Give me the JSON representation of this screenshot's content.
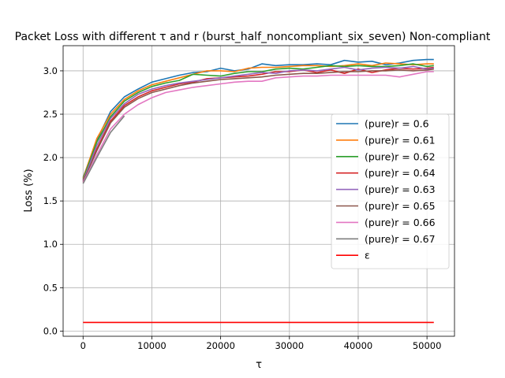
{
  "chart_data": {
    "type": "line",
    "title": "Packet Loss with different τ and r (burst_half_noncompliant_six_seven) Non-compliant",
    "xlabel": "τ",
    "ylabel": "Loss (%)",
    "xlim": [
      -2900,
      54000
    ],
    "ylim": [
      -0.06,
      3.29
    ],
    "xticks": [
      0,
      10000,
      20000,
      30000,
      40000,
      50000
    ],
    "xtick_labels": [
      "0",
      "10000",
      "20000",
      "30000",
      "40000",
      "50000"
    ],
    "yticks": [
      0.0,
      0.5,
      1.0,
      1.5,
      2.0,
      2.5,
      3.0
    ],
    "ytick_labels": [
      "0.0",
      "0.5",
      "1.0",
      "1.5",
      "2.0",
      "2.5",
      "3.0"
    ],
    "grid": true,
    "legend_position": "center-right",
    "series": [
      {
        "name": "(pure)r = 0.6",
        "color": "#1f77b4",
        "x": [
          0,
          2000,
          4000,
          6000,
          8000,
          10000,
          12000,
          14000,
          16000,
          18000,
          20000,
          22000,
          24000,
          26000,
          28000,
          30000,
          32000,
          34000,
          36000,
          38000,
          40000,
          42000,
          44000,
          46000,
          48000,
          50000,
          51000
        ],
        "y": [
          1.77,
          2.2,
          2.53,
          2.7,
          2.79,
          2.87,
          2.91,
          2.95,
          2.98,
          2.99,
          3.03,
          3.0,
          3.02,
          3.08,
          3.06,
          3.07,
          3.07,
          3.08,
          3.07,
          3.12,
          3.1,
          3.11,
          3.07,
          3.09,
          3.12,
          3.13,
          3.13
        ]
      },
      {
        "name": "(pure)r = 0.61",
        "color": "#ff7f0e",
        "x": [
          0,
          2000,
          4000,
          6000,
          8000,
          10000,
          12000,
          14000,
          16000,
          18000,
          20000,
          22000,
          24000,
          26000,
          28000,
          30000,
          32000,
          34000,
          36000,
          38000,
          40000,
          42000,
          44000,
          46000,
          48000,
          50000,
          51000
        ],
        "y": [
          1.76,
          2.22,
          2.5,
          2.67,
          2.77,
          2.84,
          2.88,
          2.92,
          2.96,
          3.0,
          3.0,
          2.99,
          3.03,
          3.04,
          3.04,
          3.05,
          3.06,
          3.06,
          3.05,
          3.06,
          3.08,
          3.06,
          3.09,
          3.08,
          3.07,
          3.08,
          3.08
        ]
      },
      {
        "name": "(pure)r = 0.62",
        "color": "#2ca02c",
        "x": [
          0,
          2000,
          4000,
          6000,
          8000,
          10000,
          12000,
          14000,
          16000,
          18000,
          20000,
          22000,
          24000,
          26000,
          28000,
          30000,
          32000,
          34000,
          36000,
          38000,
          40000,
          42000,
          44000,
          46000,
          48000,
          50000,
          51000
        ],
        "y": [
          1.75,
          2.18,
          2.47,
          2.65,
          2.75,
          2.82,
          2.86,
          2.89,
          2.96,
          2.95,
          2.94,
          2.97,
          2.99,
          2.99,
          3.02,
          3.03,
          3.02,
          3.04,
          3.06,
          3.05,
          3.06,
          3.05,
          3.05,
          3.06,
          3.08,
          3.05,
          3.06
        ]
      },
      {
        "name": "(pure)r = 0.64",
        "color": "#d62728",
        "x": [
          0,
          2000,
          4000,
          6000,
          8000,
          10000,
          12000,
          14000,
          16000,
          18000,
          20000,
          22000,
          24000,
          26000,
          28000,
          30000,
          32000,
          34000,
          36000,
          38000,
          40000,
          42000,
          44000,
          46000,
          48000,
          50000,
          51000
        ],
        "y": [
          1.74,
          2.1,
          2.42,
          2.6,
          2.7,
          2.77,
          2.81,
          2.85,
          2.87,
          2.91,
          2.92,
          2.93,
          2.94,
          2.96,
          2.99,
          2.99,
          3.01,
          2.98,
          3.01,
          2.97,
          3.02,
          2.98,
          3.01,
          3.03,
          3.02,
          3.03,
          3.04
        ]
      },
      {
        "name": "(pure)r = 0.63",
        "color": "#9467bd",
        "x": [
          0,
          2000,
          4000,
          6000,
          8000,
          10000,
          12000,
          14000,
          16000,
          18000,
          20000,
          22000,
          24000,
          26000,
          28000,
          30000,
          32000,
          34000,
          36000,
          38000,
          40000,
          42000,
          44000,
          46000,
          48000,
          50000,
          51000
        ],
        "y": [
          1.73,
          2.14,
          2.45,
          2.62,
          2.73,
          2.79,
          2.83,
          2.86,
          2.88,
          2.9,
          2.92,
          2.94,
          2.96,
          2.98,
          2.97,
          3.0,
          3.01,
          3.0,
          3.02,
          3.04,
          3.01,
          3.03,
          3.04,
          3.03,
          3.05,
          3.02,
          3.03
        ]
      },
      {
        "name": "(pure)r = 0.65",
        "color": "#8c564b",
        "x": [
          0,
          2000,
          4000,
          6000,
          8000,
          10000,
          12000,
          14000,
          16000,
          18000,
          20000,
          22000,
          24000,
          26000,
          28000,
          30000,
          32000,
          34000,
          36000,
          38000,
          40000,
          42000,
          44000,
          46000,
          48000,
          50000,
          51000
        ],
        "y": [
          1.72,
          2.08,
          2.4,
          2.58,
          2.68,
          2.75,
          2.79,
          2.83,
          2.86,
          2.88,
          2.9,
          2.91,
          2.92,
          2.93,
          2.95,
          2.96,
          2.97,
          2.97,
          2.98,
          2.99,
          2.99,
          3.0,
          3.0,
          3.01,
          3.0,
          3.01,
          3.02
        ]
      },
      {
        "name": "(pure)r = 0.66",
        "color": "#e377c2",
        "x": [
          0,
          2000,
          4000,
          6000,
          8000,
          10000,
          12000,
          14000,
          16000,
          18000,
          20000,
          22000,
          24000,
          26000,
          28000,
          30000,
          32000,
          34000,
          36000,
          38000,
          40000,
          42000,
          44000,
          46000,
          48000,
          50000,
          51000
        ],
        "y": [
          1.71,
          2.03,
          2.33,
          2.5,
          2.61,
          2.69,
          2.75,
          2.78,
          2.81,
          2.83,
          2.85,
          2.87,
          2.88,
          2.88,
          2.92,
          2.93,
          2.94,
          2.94,
          2.95,
          2.95,
          2.95,
          2.95,
          2.95,
          2.93,
          2.96,
          2.99,
          2.99
        ]
      },
      {
        "name": "(pure)r = 0.67",
        "color": "#7f7f7f",
        "x": [
          0,
          2000,
          4000,
          6000
        ],
        "y": [
          1.7,
          2.0,
          2.29,
          2.48
        ]
      },
      {
        "name": "ε",
        "color": "#ff0000",
        "x": [
          0,
          51000
        ],
        "y": [
          0.1,
          0.1
        ]
      }
    ]
  }
}
